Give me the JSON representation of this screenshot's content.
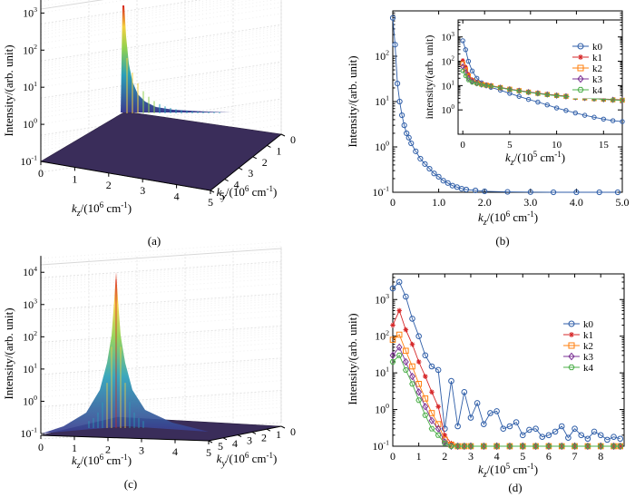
{
  "chart_data": [
    {
      "panel": "(a)",
      "type": "surface",
      "zlabel": "Intensity/(arb. unit)",
      "xlabel_var": "k",
      "xlabel_sub": "z",
      "xlabel_rest": "/(10",
      "xlabel_sup": "6",
      "xlabel_end": " cm",
      "xlabel_sup2": "-1",
      "xlabel_close": ")",
      "ylabel_var": "k",
      "ylabel_sub": "y",
      "ylabel_rest": "/(10",
      "ylabel_sup": "6",
      "ylabel_end": " cm",
      "ylabel_sup2": "-1",
      "ylabel_close": ")",
      "x_ticks": [
        "0",
        "1",
        "2",
        "3",
        "4",
        "5"
      ],
      "y_ticks": [
        "0",
        "1",
        "2",
        "3",
        "4",
        "5"
      ],
      "z_ticks": [
        {
          "base": "10",
          "exp": "-1"
        },
        {
          "base": "10",
          "exp": "0"
        },
        {
          "base": "10",
          "exp": "1"
        },
        {
          "base": "10",
          "exp": "2"
        },
        {
          "base": "10",
          "exp": "3"
        }
      ],
      "zscale": "log",
      "peak_at_kz": 0,
      "peak_value": 3000
    },
    {
      "panel": "(b)",
      "type": "line",
      "yscale": "log",
      "ylabel": "Intensity/(arb. unit)",
      "xlabel_var": "k",
      "xlabel_sub": "z",
      "xlabel_rest": "/(10",
      "xlabel_sup": "6",
      "xlabel_end": " cm",
      "xlabel_sup2": "-1",
      "xlabel_close": ")",
      "xlim": [
        0,
        5
      ],
      "ylim": [
        0.1,
        1000
      ],
      "x_ticks": [
        "0",
        "1.0",
        "2.0",
        "3.0",
        "4.0",
        "5.0"
      ],
      "y_ticks": [
        {
          "base": "10",
          "exp": "-1"
        },
        {
          "base": "10",
          "exp": "0"
        },
        {
          "base": "10",
          "exp": "1"
        },
        {
          "base": "10",
          "exp": "2"
        }
      ],
      "series": [
        {
          "name": "k0",
          "x": [
            0,
            0.05,
            0.1,
            0.15,
            0.2,
            0.25,
            0.3,
            0.35,
            0.4,
            0.5,
            0.6,
            0.7,
            0.8,
            0.9,
            1.0,
            1.1,
            1.2,
            1.3,
            1.4,
            1.5,
            1.6,
            1.8,
            2.0,
            2.5,
            3.0,
            3.5,
            4.0,
            4.5,
            4.9
          ],
          "values": [
            700,
            180,
            25,
            10,
            5,
            3,
            2,
            1.6,
            1.2,
            0.8,
            0.55,
            0.42,
            0.33,
            0.26,
            0.22,
            0.18,
            0.16,
            0.14,
            0.13,
            0.12,
            0.115,
            0.11,
            0.105,
            0.102,
            0.101,
            0.1,
            0.1,
            0.1,
            0.1
          ]
        }
      ],
      "inset": {
        "yscale": "log",
        "ylabel": "intensity/(arb. unit)",
        "xlabel_var": "k",
        "xlabel_sub": "z",
        "xlabel_rest": "/(10",
        "xlabel_sup": "5",
        "xlabel_end": " cm",
        "xlabel_sup2": "-1",
        "xlabel_close": ")",
        "xlim": [
          -0.5,
          17
        ],
        "ylim": [
          0.1,
          5000
        ],
        "x_ticks": [
          "0",
          "5",
          "10",
          "15"
        ],
        "y_ticks": [
          {
            "base": "10",
            "exp": "0"
          },
          {
            "base": "10",
            "exp": "1"
          },
          {
            "base": "10",
            "exp": "2"
          },
          {
            "base": "10",
            "exp": "3"
          }
        ],
        "legend": "top-right",
        "series": [
          {
            "name": "k0",
            "color": "#2f5ea8",
            "marker": "circle",
            "x": [
              0,
              0.3,
              0.6,
              1,
              1.5,
              2,
              2.5,
              3,
              4,
              5,
              6,
              7,
              8,
              9,
              10,
              11,
              12,
              13,
              14,
              15,
              16,
              17
            ],
            "values": [
              700,
              300,
              100,
              40,
              20,
              13,
              10,
              8.5,
              6.5,
              4.8,
              3.6,
              2.7,
              2.1,
              1.6,
              1.2,
              0.95,
              0.75,
              0.6,
              0.5,
              0.42,
              0.36,
              0.33
            ]
          },
          {
            "name": "k1",
            "color": "#d62728",
            "marker": "star",
            "x": [
              0,
              0.3,
              0.6,
              1,
              1.5,
              2,
              2.5,
              3,
              4,
              5,
              6,
              7,
              8,
              9,
              10,
              11,
              12,
              13,
              14,
              15,
              16,
              17
            ],
            "values": [
              110,
              60,
              30,
              18,
              14,
              12,
              11,
              10,
              8.5,
              7.2,
              6.3,
              5.5,
              4.9,
              4.4,
              4.0,
              3.7,
              3.4,
              3.2,
              3.0,
              2.8,
              2.7,
              2.6
            ]
          },
          {
            "name": "k2",
            "color": "#ff7f0e",
            "marker": "square",
            "x": [
              0,
              0.3,
              0.6,
              1,
              1.5,
              2,
              2.5,
              3,
              4,
              5,
              6,
              7,
              8,
              9,
              10,
              11,
              12,
              13,
              14,
              15,
              16,
              17
            ],
            "values": [
              80,
              45,
              25,
              16,
              13,
              11.5,
              10.5,
              9.8,
              8.3,
              7.1,
              6.2,
              5.4,
              4.8,
              4.3,
              3.9,
              3.6,
              3.3,
              3.1,
              2.9,
              2.75,
              2.6,
              2.5
            ]
          },
          {
            "name": "k3",
            "color": "#7b3294",
            "marker": "diamond",
            "x": [
              0,
              0.3,
              0.6,
              1,
              1.5,
              2,
              2.5,
              3,
              4,
              5,
              6,
              7,
              8,
              9,
              10,
              11,
              12,
              13,
              14,
              15,
              16,
              17
            ],
            "values": [
              60,
              35,
              20,
              15,
              12.5,
              11,
              10.2,
              9.6,
              8.2,
              7.0,
              6.1,
              5.4,
              4.8,
              4.3,
              3.9,
              3.6,
              3.3,
              3.1,
              2.9,
              2.75,
              2.6,
              2.5
            ]
          },
          {
            "name": "k4",
            "color": "#4daf4a",
            "marker": "hexagon",
            "x": [
              0,
              0.3,
              0.6,
              1,
              1.5,
              2,
              2.5,
              3,
              4,
              5,
              6,
              7,
              8,
              9,
              10,
              11,
              12,
              13,
              14,
              15,
              16,
              17
            ],
            "values": [
              40,
              25,
              17,
              13.5,
              12,
              10.8,
              10,
              9.5,
              8.1,
              6.9,
              6.0,
              5.3,
              4.7,
              4.2,
              3.85,
              3.55,
              3.3,
              3.1,
              2.9,
              2.75,
              2.6,
              2.5
            ]
          }
        ]
      }
    },
    {
      "panel": "(c)",
      "type": "surface",
      "zlabel": "Intensity/(arb. unit)",
      "xlabel_var": "k",
      "xlabel_sub": "z",
      "xlabel_rest": "/(10",
      "xlabel_sup": "6",
      "xlabel_end": " cm",
      "xlabel_sup2": "-1",
      "xlabel_close": ")",
      "ylabel_var": "k",
      "ylabel_sub": "y",
      "ylabel_rest": "/(10",
      "ylabel_sup": "6",
      "ylabel_end": " cm",
      "ylabel_sup2": "-1",
      "ylabel_close": ")",
      "x_ticks": [
        "0",
        "1",
        "2",
        "3",
        "4",
        "5"
      ],
      "y_ticks": [
        "0",
        "1",
        "2",
        "3",
        "4",
        "5"
      ],
      "z_ticks": [
        {
          "base": "10",
          "exp": "-1"
        },
        {
          "base": "10",
          "exp": "0"
        },
        {
          "base": "10",
          "exp": "1"
        },
        {
          "base": "10",
          "exp": "2"
        },
        {
          "base": "10",
          "exp": "3"
        },
        {
          "base": "10",
          "exp": "4"
        }
      ],
      "zscale": "log",
      "peak_at_kz": 2.3,
      "peak_value": 20000
    },
    {
      "panel": "(d)",
      "type": "line",
      "yscale": "log",
      "ylabel": "Intensity/(arb. unit)",
      "xlabel_var": "k",
      "xlabel_sub": "z",
      "xlabel_rest": "/(10",
      "xlabel_sup": "5",
      "xlabel_end": " cm",
      "xlabel_sup2": "-1",
      "xlabel_close": ")",
      "xlim": [
        0,
        8.9
      ],
      "ylim": [
        0.1,
        5000
      ],
      "x_ticks": [
        "0",
        "1",
        "2",
        "3",
        "4",
        "5",
        "6",
        "7",
        "8"
      ],
      "y_ticks": [
        {
          "base": "10",
          "exp": "-1"
        },
        {
          "base": "10",
          "exp": "0"
        },
        {
          "base": "10",
          "exp": "1"
        },
        {
          "base": "10",
          "exp": "2"
        },
        {
          "base": "10",
          "exp": "3"
        }
      ],
      "legend": "top-right",
      "series": [
        {
          "name": "k0",
          "color": "#2f5ea8",
          "marker": "circle",
          "x": [
            0,
            0.25,
            0.5,
            0.75,
            1.0,
            1.25,
            1.5,
            1.75,
            2.0,
            2.25,
            2.5,
            2.75,
            3.0,
            3.25,
            3.5,
            3.75,
            4.0,
            4.25,
            4.5,
            4.75,
            5.0,
            5.25,
            5.5,
            5.75,
            6.0,
            6.25,
            6.5,
            6.75,
            7.0,
            7.25,
            7.5,
            7.75,
            8.0,
            8.25,
            8.5,
            8.75
          ],
          "values": [
            2000,
            3000,
            1200,
            300,
            100,
            30,
            15,
            12,
            0.3,
            6,
            0.35,
            3,
            0.6,
            1.5,
            0.4,
            0.8,
            0.9,
            0.3,
            0.35,
            0.45,
            0.2,
            0.28,
            0.3,
            0.18,
            0.2,
            0.25,
            0.35,
            0.17,
            0.3,
            0.2,
            0.16,
            0.25,
            0.2,
            0.15,
            0.18,
            0.16
          ]
        },
        {
          "name": "k1",
          "color": "#d62728",
          "marker": "star",
          "x": [
            0,
            0.25,
            0.5,
            0.75,
            1.0,
            1.25,
            1.5,
            1.75,
            2.0,
            2.25,
            2.5,
            2.75,
            3.0,
            3.5,
            4.0,
            4.5,
            5.0,
            5.5,
            6.0,
            6.5,
            7.0,
            7.5,
            8.0,
            8.5,
            8.75
          ],
          "values": [
            200,
            500,
            150,
            60,
            20,
            8,
            3,
            1.2,
            0.2,
            0.12,
            0.1,
            0.1,
            0.1,
            0.1,
            0.1,
            0.1,
            0.1,
            0.1,
            0.1,
            0.1,
            0.1,
            0.1,
            0.1,
            0.1,
            0.1
          ]
        },
        {
          "name": "k2",
          "color": "#ff7f0e",
          "marker": "square",
          "x": [
            0,
            0.25,
            0.5,
            0.75,
            1.0,
            1.25,
            1.5,
            1.75,
            2.0,
            2.25,
            2.5,
            2.75,
            3.0,
            3.5,
            4.0,
            4.5,
            5.0,
            5.5,
            6.0,
            6.5,
            7.0,
            7.5,
            8.0,
            8.5,
            8.75
          ],
          "values": [
            80,
            110,
            40,
            15,
            5,
            2,
            0.8,
            0.4,
            0.15,
            0.11,
            0.1,
            0.1,
            0.1,
            0.1,
            0.1,
            0.1,
            0.1,
            0.1,
            0.1,
            0.1,
            0.1,
            0.1,
            0.1,
            0.1,
            0.1
          ]
        },
        {
          "name": "k3",
          "color": "#7b3294",
          "marker": "diamond",
          "x": [
            0,
            0.25,
            0.5,
            0.75,
            1.0,
            1.25,
            1.5,
            1.75,
            2.0,
            2.25,
            2.5,
            2.75,
            3.0,
            3.5,
            4.0,
            4.5,
            5.0,
            5.5,
            6.0,
            6.5,
            7.0,
            7.5,
            8.0,
            8.5,
            8.75
          ],
          "values": [
            30,
            50,
            20,
            8,
            3,
            1.2,
            0.5,
            0.3,
            0.13,
            0.1,
            0.1,
            0.1,
            0.1,
            0.1,
            0.1,
            0.1,
            0.1,
            0.1,
            0.1,
            0.1,
            0.1,
            0.1,
            0.1,
            0.1,
            0.1
          ]
        },
        {
          "name": "k4",
          "color": "#4daf4a",
          "marker": "hexagon",
          "x": [
            0,
            0.25,
            0.5,
            0.75,
            1.0,
            1.25,
            1.5,
            1.75,
            2.0,
            2.25,
            2.5,
            2.75,
            3.0,
            3.5,
            4.0,
            4.5,
            5.0,
            5.5,
            6.0,
            6.5,
            7.0,
            7.5,
            8.0,
            8.5,
            8.75
          ],
          "values": [
            20,
            30,
            12,
            5,
            1.8,
            0.7,
            0.3,
            0.2,
            0.12,
            0.1,
            0.1,
            0.1,
            0.1,
            0.1,
            0.1,
            0.1,
            0.1,
            0.1,
            0.1,
            0.1,
            0.1,
            0.1,
            0.1,
            0.1,
            0.1
          ]
        }
      ]
    }
  ]
}
